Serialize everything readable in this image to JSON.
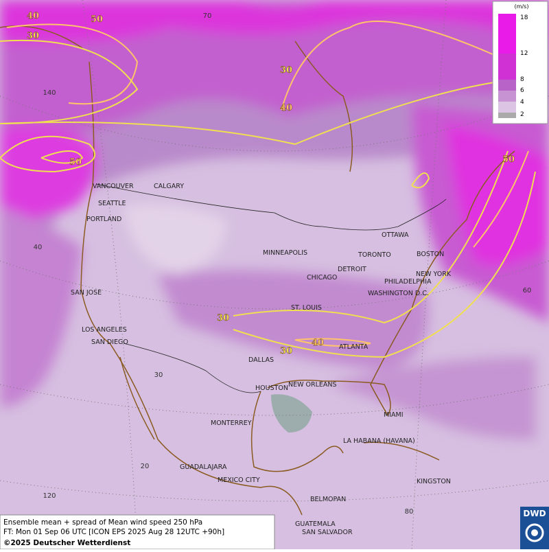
{
  "grid_labels": [
    "70",
    "140",
    "40",
    "30",
    "20",
    "120",
    "60",
    "80"
  ],
  "contour_labels": [
    "40",
    "50",
    "30",
    "30",
    "40",
    "50",
    "50",
    "30",
    "40",
    "30"
  ],
  "cities": [
    "VANCOUVER",
    "CALGARY",
    "SEATTLE",
    "PORTLAND",
    "MINNEAPOLIS",
    "OTTAWA",
    "TORONTO",
    "BOSTON",
    "DETROIT",
    "CHICAGO",
    "NEW YORK",
    "PHILADELPHIA",
    "WASHINGTON D.C.",
    "SAN JOSE",
    "ST. LOUIS",
    "LOS ANGELES",
    "SAN DIEGO",
    "ATLANTA",
    "DALLAS",
    "HOUSTON",
    "NEW ORLEANS",
    "MIAMI",
    "MONTERREY",
    "LA HABANA (HAVANA)",
    "GUADALAJARA",
    "MEXICO CITY",
    "KINGSTON",
    "BELMOPAN",
    "GUATEMALA",
    "SAN SALVADOR"
  ],
  "legend": {
    "unit": "(m/s)",
    "ticks": [
      "18",
      "12",
      "8",
      "6",
      "4",
      "2"
    ]
  },
  "caption": {
    "line1": "Ensemble mean + spread of Mean wind speed 250 hPa",
    "line2": "FT: Mon 01 Sep 06 UTC [ICON EPS 2025 Aug 28 12UTC +90h]",
    "line3": "©2025 Deutscher Wetterdienst"
  },
  "logo": "DWD"
}
